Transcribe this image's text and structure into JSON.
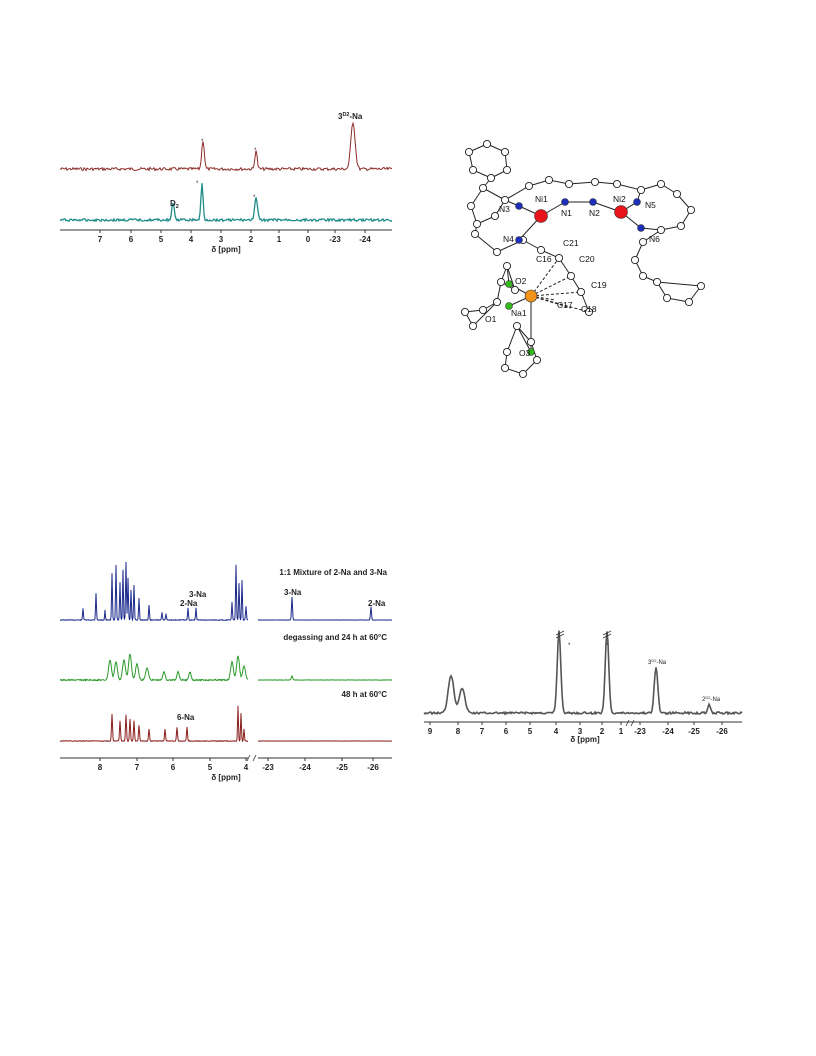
{
  "figures": {
    "nmr1": {
      "peak_label": "3",
      "peak_label_sup": "D2",
      "peak_label_suffix": "-Na",
      "d_label": "D",
      "d_label_sub": "2",
      "star": "*",
      "xlabel": "δ [ppm]",
      "ticks": [
        "7",
        "6",
        "5",
        "4",
        "3",
        "2",
        "1",
        "0",
        "-23",
        "-24"
      ],
      "trace_colors": {
        "top": "#8b2a26",
        "bottom": "#1e8c89"
      }
    },
    "crystal": {
      "atoms": [
        "Ni1",
        "N1",
        "N2",
        "Ni2",
        "N3",
        "N5",
        "N4",
        "N6",
        "C21",
        "C16",
        "C20",
        "O2",
        "C19",
        "Na1",
        "O1",
        "C17",
        "C18",
        "O3"
      ],
      "colors": {
        "ni": "#e8141b",
        "n": "#1c2fb8",
        "na": "#f2931b",
        "o": "#33b81c"
      }
    },
    "nmr2": {
      "labels": {
        "mixture": "1:1 Mixture of 2-Na and 3-Na",
        "three_na_a": "3-Na",
        "two_na_a": "2-Na",
        "three_na_b": "3-Na",
        "two_na_b": "2-Na",
        "degassing": "degassing and 24 h at 60°C",
        "h48": "48 h at 60°C",
        "six_na": "6-Na"
      },
      "xlabel": "δ [ppm]",
      "ticks": [
        "8",
        "7",
        "6",
        "5",
        "4",
        "-23",
        "-24",
        "-25",
        "-26"
      ],
      "trace_colors": {
        "top": "#1b2a8c",
        "middle": "#2a9a2a",
        "bottom": "#8b1e1e"
      }
    },
    "nmr3": {
      "peak3_label": "3",
      "peak3_sup": "D2",
      "peak3_suffix": "-Na",
      "peak2_label": "2",
      "peak2_sup": "D2",
      "peak2_suffix": "-Na",
      "star": "*",
      "xlabel": "δ [ppm]",
      "ticks": [
        "9",
        "8",
        "7",
        "6",
        "5",
        "4",
        "3",
        "2",
        "1",
        "-23",
        "-24",
        "-25",
        "-26"
      ],
      "trace_color": "#555555"
    }
  }
}
